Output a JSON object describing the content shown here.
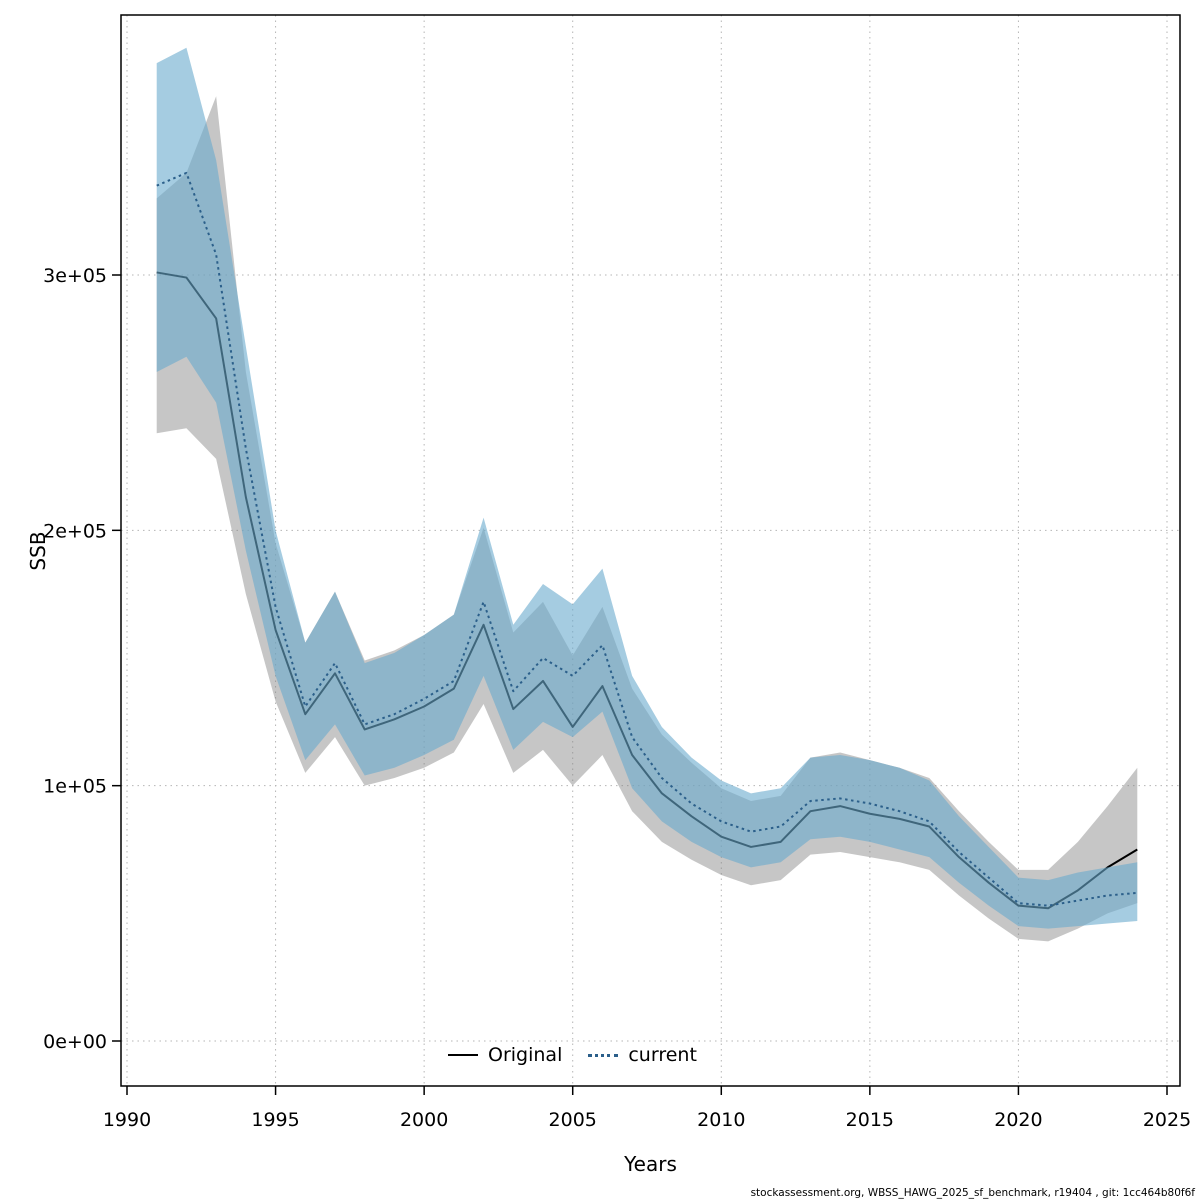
{
  "figure": {
    "footer": "stockassessment.org, WBSS_HAWG_2025_sf_benchmark, r19404 , git: 1cc464b80f6f"
  },
  "chart_data": {
    "type": "line",
    "title": "",
    "xlabel": "Years",
    "ylabel": "SSB",
    "xlim": [
      1990,
      2025
    ],
    "ylim": [
      0,
      400000
    ],
    "grid": true,
    "legend_position": "bottom-center-inside",
    "x_ticks": [
      1990,
      1995,
      2000,
      2005,
      2010,
      2015,
      2020,
      2025
    ],
    "y_ticks": [
      {
        "value": 0,
        "label": "0e+00"
      },
      {
        "value": 100000,
        "label": "1e+05"
      },
      {
        "value": 200000,
        "label": "2e+05"
      },
      {
        "value": 300000,
        "label": "3e+05"
      }
    ],
    "x": [
      1991,
      1992,
      1993,
      1994,
      1995,
      1996,
      1997,
      1998,
      1999,
      2000,
      2001,
      2002,
      2003,
      2004,
      2005,
      2006,
      2007,
      2008,
      2009,
      2010,
      2011,
      2012,
      2013,
      2014,
      2015,
      2016,
      2017,
      2018,
      2019,
      2020,
      2021,
      2022,
      2023,
      2024
    ],
    "series": [
      {
        "name": "Original",
        "line_style": "solid",
        "line_color": "#000000",
        "band_color": "rgba(128,128,128,0.45)",
        "values": [
          301000,
          299000,
          283000,
          213000,
          161000,
          128000,
          144000,
          122000,
          126000,
          131000,
          138000,
          163000,
          130000,
          141000,
          123000,
          139000,
          112000,
          97000,
          88000,
          80000,
          76000,
          78000,
          90000,
          92000,
          89000,
          87000,
          84000,
          72000,
          62000,
          53000,
          52000,
          59000,
          68000,
          75000
        ],
        "lower": [
          238000,
          240000,
          228000,
          175000,
          133000,
          105000,
          119000,
          100000,
          103000,
          107000,
          113000,
          132000,
          105000,
          114000,
          100000,
          112000,
          90000,
          78000,
          71000,
          65000,
          61000,
          63000,
          73000,
          74000,
          72000,
          70000,
          67000,
          57000,
          48000,
          40000,
          39000,
          44000,
          50000,
          54000
        ],
        "upper": [
          330000,
          340000,
          370000,
          262000,
          195000,
          156000,
          176000,
          149000,
          153000,
          159000,
          167000,
          201000,
          160000,
          172000,
          151000,
          170000,
          138000,
          120000,
          109000,
          99000,
          94000,
          96000,
          111000,
          113000,
          110000,
          107000,
          103000,
          90000,
          78000,
          67000,
          67000,
          78000,
          92000,
          107000
        ]
      },
      {
        "name": "current",
        "line_style": "dotted",
        "line_color": "#2b5f8a",
        "band_color": "rgba(105,170,205,0.6)",
        "values": [
          335000,
          340000,
          308000,
          232000,
          170000,
          131000,
          148000,
          124000,
          128000,
          134000,
          141000,
          172000,
          137000,
          150000,
          143000,
          155000,
          119000,
          103000,
          93000,
          86000,
          82000,
          84000,
          94000,
          95000,
          93000,
          90000,
          86000,
          74000,
          64000,
          54000,
          53000,
          55000,
          57000,
          58000
        ],
        "lower": [
          262000,
          268000,
          250000,
          192000,
          143000,
          110000,
          124000,
          104000,
          107000,
          112000,
          118000,
          143000,
          114000,
          125000,
          119000,
          129000,
          99000,
          86000,
          78000,
          72000,
          68000,
          70000,
          79000,
          80000,
          78000,
          75000,
          72000,
          62000,
          53000,
          45000,
          44000,
          45000,
          46000,
          47000
        ],
        "upper": [
          383000,
          389000,
          345000,
          272000,
          200000,
          156000,
          176000,
          148000,
          152000,
          159000,
          167000,
          205000,
          163000,
          179000,
          171000,
          185000,
          143000,
          123000,
          111000,
          102000,
          97000,
          99000,
          111000,
          112000,
          110000,
          107000,
          102000,
          88000,
          76000,
          64000,
          63000,
          66000,
          68000,
          70000
        ]
      }
    ]
  }
}
